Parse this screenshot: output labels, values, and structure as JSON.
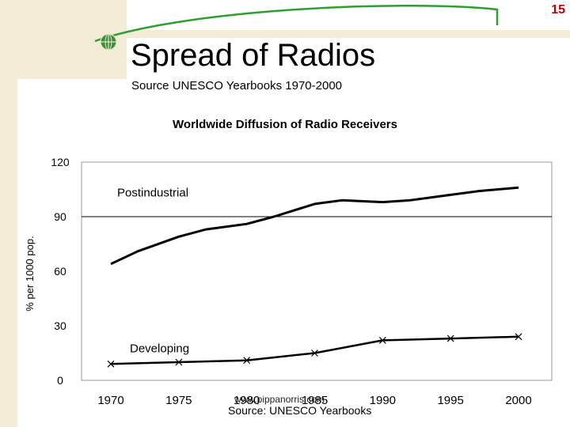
{
  "slide": {
    "page_number": "15",
    "title": "Spread of Radios",
    "subtitle": "Source UNESCO Yearbooks 1970-2000",
    "watermark": "www.pippanorris.com",
    "footer_source": "Source: UNESCO Yearbooks"
  },
  "colors": {
    "accent_green": "#2e9e2e",
    "band_beige": "#f2ecd6",
    "page_number_red": "#c00000"
  },
  "chart_data": {
    "type": "line",
    "title": "Worldwide Diffusion of  Radio Receivers",
    "xlabel": "",
    "ylabel": "% per 1000 pop.",
    "x": [
      1970,
      1975,
      1980,
      1985,
      1990,
      1995,
      2000
    ],
    "x_ticks": [
      "1970",
      "1975",
      "1980",
      "1985",
      "1990",
      "1995",
      "2000"
    ],
    "y_ticks": [
      "0",
      "30",
      "60",
      "90",
      "120"
    ],
    "ylim": [
      0,
      120
    ],
    "grid": "horizontal line at 90",
    "series": [
      {
        "name": "Postindustrial",
        "x": [
          1970,
          1972,
          1975,
          1977,
          1980,
          1982,
          1985,
          1987,
          1990,
          1992,
          1995,
          1997,
          2000
        ],
        "values": [
          64,
          71,
          79,
          83,
          86,
          90,
          97,
          99,
          98,
          99,
          102,
          104,
          106
        ],
        "markers": false
      },
      {
        "name": "Developing",
        "x": [
          1970,
          1975,
          1980,
          1985,
          1990,
          1995,
          2000
        ],
        "values": [
          9,
          10,
          11,
          15,
          22,
          23,
          24
        ],
        "markers": true
      }
    ]
  }
}
